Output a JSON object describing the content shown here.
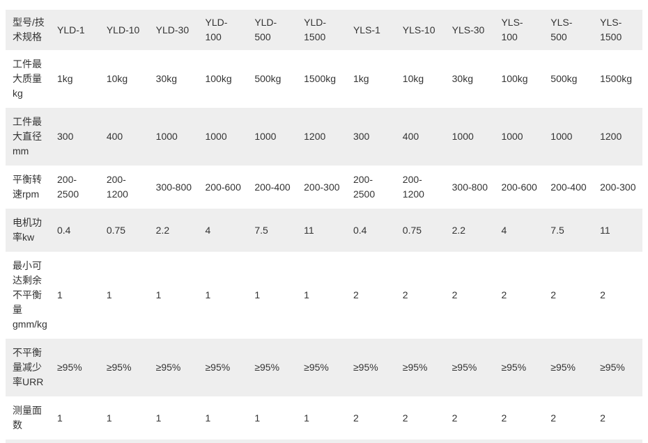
{
  "table": {
    "header": [
      "型号/技术规格",
      "YLD-1",
      "YLD-10",
      "YLD-30",
      "YLD-100",
      "YLD-500",
      "YLD-1500",
      "YLS-1",
      "YLS-10",
      "YLS-30",
      "YLS-100",
      "YLS-500",
      "YLS-1500"
    ],
    "rows": [
      {
        "label": "工件最大质量kg",
        "values": [
          "1kg",
          "10kg",
          "30kg",
          "100kg",
          "500kg",
          "1500kg",
          "1kg",
          "10kg",
          "30kg",
          "100kg",
          "500kg",
          "1500kg"
        ]
      },
      {
        "label": "工件最大直径mm",
        "values": [
          "300",
          "400",
          "1000",
          "1000",
          "1000",
          "1200",
          "300",
          "400",
          "1000",
          "1000",
          "1000",
          "1200"
        ]
      },
      {
        "label": "平衡转速rpm",
        "values": [
          "200-2500",
          "200-1200",
          "300-800",
          "200-600",
          "200-400",
          "200-300",
          "200-2500",
          "200-1200",
          "300-800",
          "200-600",
          "200-400",
          "200-300"
        ]
      },
      {
        "label": "电机功率kw",
        "values": [
          "0.4",
          "0.75",
          "2.2",
          "4",
          "7.5",
          "11",
          "0.4",
          "0.75",
          "2.2",
          "4",
          "7.5",
          "11"
        ]
      },
      {
        "label": "最小可达剩余不平衡量gmm/kg",
        "values": [
          "1",
          "1",
          "1",
          "1",
          "1",
          "1",
          "2",
          "2",
          "2",
          "2",
          "2",
          "2"
        ]
      },
      {
        "label": "不平衡量减少率URR",
        "values": [
          "≥95%",
          "≥95%",
          "≥95%",
          "≥95%",
          "≥95%",
          "≥95%",
          "≥95%",
          "≥95%",
          "≥95%",
          "≥95%",
          "≥95%",
          "≥95%"
        ]
      },
      {
        "label": "测量面数",
        "values": [
          "1",
          "1",
          "1",
          "1",
          "1",
          "1",
          "2",
          "2",
          "2",
          "2",
          "2",
          "2"
        ]
      }
    ]
  },
  "colors": {
    "stripe_bg": "#eeeeee",
    "page_bg": "#ffffff",
    "text": "#333333"
  }
}
